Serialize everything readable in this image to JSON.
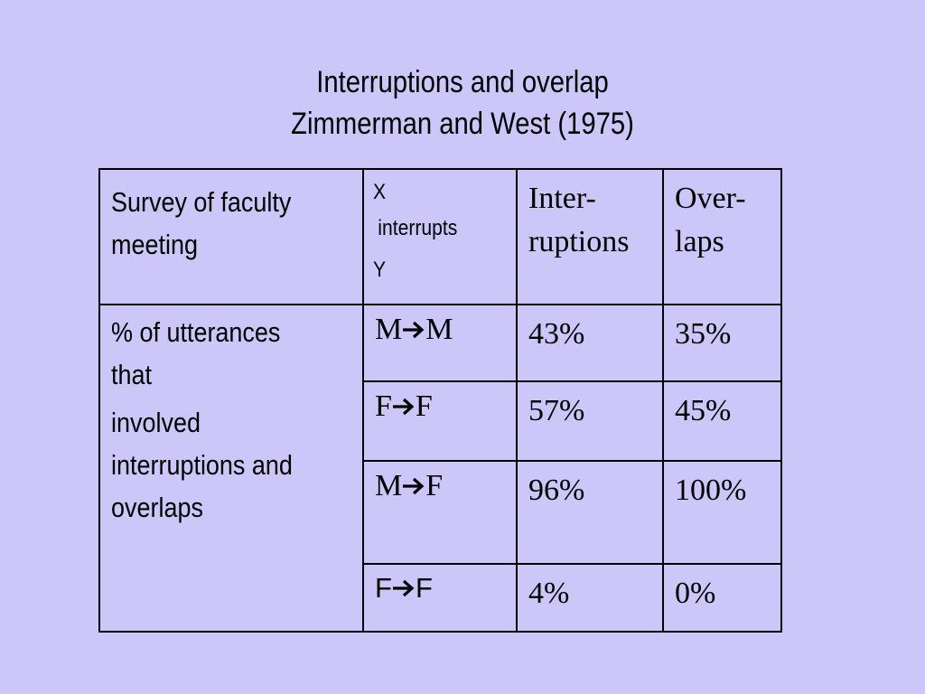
{
  "slide": {
    "title_line1": "Interruptions and overlap",
    "title_line2": "Zimmerman and West (1975)"
  },
  "table": {
    "header": {
      "col1": [
        "Survey of faculty",
        "meeting"
      ],
      "col2": {
        "x": "X",
        "interrupts": "interrupts",
        "y": "Y"
      },
      "col3": [
        "Inter-",
        "ruptions"
      ],
      "col4": [
        "Over-",
        "laps"
      ]
    },
    "row_label": [
      "% of utterances",
      "that",
      "involved",
      "interruptions and",
      "overlaps"
    ],
    "rows": [
      {
        "from": "M",
        "to": "M",
        "interruptions": "43%",
        "overlaps": "35%"
      },
      {
        "from": "F",
        "to": "F",
        "interruptions": "57%",
        "overlaps": "45%"
      },
      {
        "from": "M",
        "to": "F",
        "interruptions": "96%",
        "overlaps": "100%"
      },
      {
        "from": "F",
        "to": "F",
        "interruptions": "4%",
        "overlaps": "0%"
      }
    ]
  },
  "icons": {
    "arrow": "right-arrow-icon"
  }
}
